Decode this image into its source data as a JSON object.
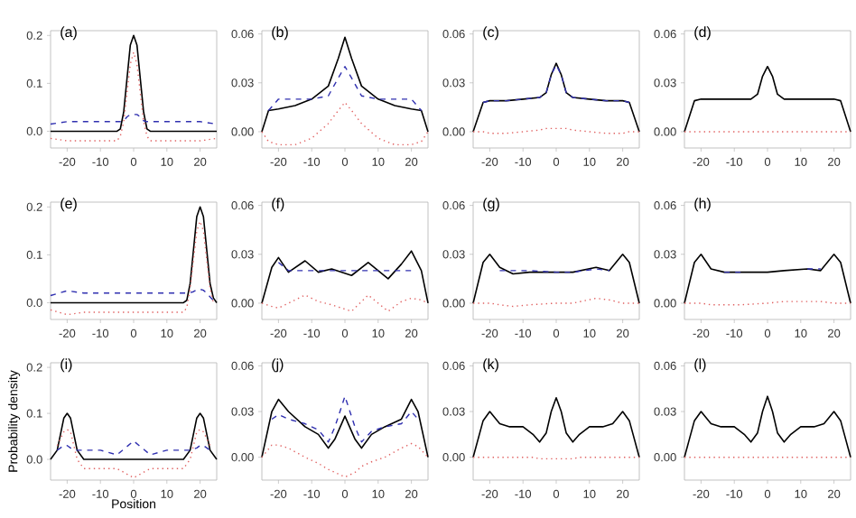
{
  "chart_data": [
    {
      "type": "line",
      "title": "(a)",
      "x": [
        -25,
        -20,
        -15,
        -10,
        -5,
        -4,
        -3,
        -2,
        -1,
        0,
        1,
        2,
        3,
        4,
        5,
        10,
        15,
        20,
        25
      ],
      "xlim": [
        -25,
        25
      ],
      "ylim": [
        -0.035,
        0.21
      ],
      "xticks": [
        -20,
        -10,
        0,
        10,
        20
      ],
      "yticks": [
        {
          "value": 0,
          "label": "0.0"
        },
        {
          "value": 0.1,
          "label": "0.1"
        },
        {
          "value": 0.2,
          "label": "0.2"
        }
      ],
      "series": [
        {
          "color": "#000000",
          "line_style": "solid",
          "values": [
            0,
            0,
            0,
            0,
            0,
            0.005,
            0.04,
            0.11,
            0.18,
            0.2,
            0.18,
            0.11,
            0.04,
            0.005,
            0,
            0,
            0,
            0,
            0
          ]
        },
        {
          "color": "#3030b0",
          "line_style": "dashed",
          "values": [
            0.015,
            0.02,
            0.02,
            0.02,
            0.02,
            0.02,
            0.022,
            0.03,
            0.035,
            0.035,
            0.035,
            0.03,
            0.022,
            0.02,
            0.02,
            0.02,
            0.02,
            0.02,
            0.015
          ]
        },
        {
          "color": "#e06060",
          "line_style": "dotted",
          "values": [
            -0.015,
            -0.02,
            -0.02,
            -0.02,
            -0.02,
            -0.01,
            0.02,
            0.08,
            0.14,
            0.165,
            0.14,
            0.08,
            0.02,
            -0.01,
            -0.02,
            -0.02,
            -0.02,
            -0.02,
            -0.015
          ]
        }
      ]
    },
    {
      "type": "line",
      "title": "(b)",
      "x": [
        -25,
        -23,
        -20,
        -15,
        -10,
        -5,
        -2,
        0,
        2,
        5,
        10,
        15,
        20,
        23,
        25
      ],
      "xlim": [
        -25,
        25
      ],
      "ylim": [
        -0.01,
        0.062
      ],
      "xticks": [
        -20,
        -10,
        0,
        10,
        20
      ],
      "yticks": [
        {
          "value": 0,
          "label": "0.00"
        },
        {
          "value": 0.03,
          "label": "0.03"
        },
        {
          "value": 0.06,
          "label": "0.06"
        }
      ],
      "series": [
        {
          "color": "#000000",
          "line_style": "solid",
          "values": [
            0,
            0.013,
            0.014,
            0.016,
            0.02,
            0.028,
            0.045,
            0.058,
            0.045,
            0.028,
            0.02,
            0.016,
            0.014,
            0.013,
            0
          ]
        },
        {
          "color": "#3030b0",
          "line_style": "dashed",
          "values": [
            null,
            0.013,
            0.02,
            0.02,
            0.02,
            0.022,
            0.033,
            0.04,
            0.033,
            0.022,
            0.02,
            0.02,
            0.02,
            0.013,
            null
          ]
        },
        {
          "color": "#e06060",
          "line_style": "dotted",
          "values": [
            0,
            -0.006,
            -0.008,
            -0.008,
            -0.004,
            0.005,
            0.013,
            0.018,
            0.013,
            0.005,
            -0.004,
            -0.008,
            -0.008,
            -0.006,
            0
          ]
        }
      ]
    },
    {
      "type": "line",
      "title": "(c)",
      "x": [
        -25,
        -22,
        -20,
        -15,
        -10,
        -5,
        -3,
        -1.5,
        0,
        1.5,
        3,
        5,
        10,
        15,
        20,
        22,
        25
      ],
      "xlim": [
        -25,
        25
      ],
      "ylim": [
        -0.01,
        0.062
      ],
      "xticks": [
        -20,
        -10,
        0,
        10,
        20
      ],
      "yticks": [
        {
          "value": 0,
          "label": "0.00"
        },
        {
          "value": 0.03,
          "label": "0.03"
        },
        {
          "value": 0.06,
          "label": "0.06"
        }
      ],
      "series": [
        {
          "color": "#000000",
          "line_style": "solid",
          "values": [
            0,
            0.018,
            0.019,
            0.019,
            0.02,
            0.021,
            0.024,
            0.035,
            0.042,
            0.035,
            0.024,
            0.021,
            0.02,
            0.019,
            0.019,
            0.018,
            0
          ]
        },
        {
          "color": "#3030b0",
          "line_style": "dashed",
          "values": [
            null,
            0.018,
            0.019,
            0.019,
            0.02,
            0.021,
            0.024,
            0.035,
            0.041,
            0.035,
            0.024,
            0.021,
            0.02,
            0.019,
            0.019,
            0.018,
            null
          ]
        },
        {
          "color": "#e06060",
          "line_style": "dotted",
          "values": [
            0,
            0,
            -0.001,
            -0.001,
            0,
            0.001,
            0.002,
            0.002,
            0.002,
            0.002,
            0.002,
            0.001,
            0,
            -0.001,
            -0.001,
            0,
            0
          ]
        }
      ]
    },
    {
      "type": "line",
      "title": "(d)",
      "x": [
        -25,
        -22,
        -20,
        -15,
        -10,
        -5,
        -3,
        -1.5,
        0,
        1.5,
        3,
        5,
        10,
        15,
        20,
        22,
        25
      ],
      "xlim": [
        -25,
        25
      ],
      "ylim": [
        -0.01,
        0.062
      ],
      "xticks": [
        -20,
        -10,
        0,
        10,
        20
      ],
      "yticks": [
        {
          "value": 0,
          "label": "0.00"
        },
        {
          "value": 0.03,
          "label": "0.03"
        },
        {
          "value": 0.06,
          "label": "0.06"
        }
      ],
      "series": [
        {
          "color": "#000000",
          "line_style": "solid",
          "values": [
            0,
            0.019,
            0.02,
            0.02,
            0.02,
            0.02,
            0.023,
            0.034,
            0.04,
            0.034,
            0.023,
            0.02,
            0.02,
            0.02,
            0.02,
            0.019,
            0
          ]
        },
        {
          "color": "#e06060",
          "line_style": "dotted",
          "values": [
            0,
            0,
            0,
            0,
            0,
            0,
            0,
            0,
            0,
            0,
            0,
            0,
            0,
            0,
            0,
            0,
            0
          ]
        }
      ]
    },
    {
      "type": "line",
      "title": "(e)",
      "x": [
        -25,
        -20,
        -15,
        -10,
        -5,
        0,
        5,
        10,
        15,
        16,
        17,
        18,
        19,
        20,
        21,
        22,
        23,
        24,
        25
      ],
      "xlim": [
        -25,
        25
      ],
      "ylim": [
        -0.035,
        0.21
      ],
      "xticks": [
        -20,
        -10,
        0,
        10,
        20
      ],
      "yticks": [
        {
          "value": 0,
          "label": "0.0"
        },
        {
          "value": 0.1,
          "label": "0.1"
        },
        {
          "value": 0.2,
          "label": "0.2"
        }
      ],
      "series": [
        {
          "color": "#000000",
          "line_style": "solid",
          "values": [
            0,
            0,
            0,
            0,
            0,
            0,
            0,
            0,
            0,
            0.005,
            0.04,
            0.11,
            0.18,
            0.2,
            0.18,
            0.11,
            0.04,
            0.01,
            0
          ]
        },
        {
          "color": "#3030b0",
          "line_style": "dashed",
          "values": [
            0.015,
            0.025,
            0.02,
            0.02,
            0.02,
            0.02,
            0.02,
            0.02,
            0.02,
            0.02,
            0.021,
            0.023,
            0.027,
            0.028,
            0.026,
            0.02,
            0.012,
            0.005,
            0
          ]
        },
        {
          "color": "#e06060",
          "line_style": "dotted",
          "values": [
            -0.015,
            -0.025,
            -0.02,
            -0.02,
            -0.02,
            -0.02,
            -0.02,
            -0.02,
            -0.02,
            -0.01,
            0.03,
            0.09,
            0.15,
            0.17,
            0.15,
            0.09,
            0.03,
            0,
            null
          ]
        }
      ]
    },
    {
      "type": "line",
      "title": "(f)",
      "x": [
        -25,
        -22,
        -20,
        -17,
        -12,
        -8,
        -4,
        2,
        7,
        13,
        17,
        20,
        23,
        25
      ],
      "xlim": [
        -25,
        25
      ],
      "ylim": [
        -0.01,
        0.062
      ],
      "xticks": [
        -20,
        -10,
        0,
        10,
        20
      ],
      "yticks": [
        {
          "value": 0,
          "label": "0.00"
        },
        {
          "value": 0.03,
          "label": "0.03"
        },
        {
          "value": 0.06,
          "label": "0.06"
        }
      ],
      "series": [
        {
          "color": "#000000",
          "line_style": "solid",
          "values": [
            0,
            0.022,
            0.028,
            0.019,
            0.026,
            0.019,
            0.021,
            0.017,
            0.025,
            0.015,
            0.024,
            0.032,
            0.02,
            0
          ]
        },
        {
          "color": "#3030b0",
          "line_style": "dashed",
          "values": [
            null,
            null,
            0.025,
            0.02,
            0.02,
            0.02,
            0.02,
            0.02,
            0.02,
            0.02,
            0.02,
            0.02,
            null,
            null
          ]
        },
        {
          "color": "#e06060",
          "line_style": "dotted",
          "values": [
            0,
            -0.002,
            -0.003,
            0,
            0.005,
            0.001,
            -0.001,
            -0.005,
            0.005,
            -0.005,
            0.001,
            0.003,
            0.002,
            0
          ]
        }
      ]
    },
    {
      "type": "line",
      "title": "(g)",
      "x": [
        -25,
        -22,
        -20,
        -17,
        -13,
        -8,
        0,
        5,
        12,
        16,
        20,
        22,
        25
      ],
      "xlim": [
        -25,
        25
      ],
      "ylim": [
        -0.01,
        0.062
      ],
      "xticks": [
        -20,
        -10,
        0,
        10,
        20
      ],
      "yticks": [
        {
          "value": 0,
          "label": "0.00"
        },
        {
          "value": 0.03,
          "label": "0.03"
        },
        {
          "value": 0.06,
          "label": "0.06"
        }
      ],
      "series": [
        {
          "color": "#000000",
          "line_style": "solid",
          "values": [
            0,
            0.025,
            0.03,
            0.022,
            0.018,
            0.019,
            0.019,
            0.019,
            0.022,
            0.02,
            0.03,
            0.025,
            0
          ]
        },
        {
          "color": "#3030b0",
          "line_style": "dashed",
          "values": [
            null,
            null,
            null,
            0.02,
            0.02,
            0.02,
            0.019,
            0.019,
            0.021,
            0.02,
            null,
            null,
            null
          ]
        },
        {
          "color": "#e06060",
          "line_style": "dotted",
          "values": [
            0,
            0,
            0,
            -0.001,
            -0.002,
            -0.001,
            0,
            0,
            0.003,
            0.002,
            0,
            0,
            0
          ]
        }
      ]
    },
    {
      "type": "line",
      "title": "(h)",
      "x": [
        -25,
        -22,
        -20,
        -17,
        -13,
        -8,
        0,
        5,
        12,
        16,
        20,
        22,
        25
      ],
      "xlim": [
        -25,
        25
      ],
      "ylim": [
        -0.01,
        0.062
      ],
      "xticks": [
        -20,
        -10,
        0,
        10,
        20
      ],
      "yticks": [
        {
          "value": 0,
          "label": "0.00"
        },
        {
          "value": 0.03,
          "label": "0.03"
        },
        {
          "value": 0.06,
          "label": "0.06"
        }
      ],
      "series": [
        {
          "color": "#000000",
          "line_style": "solid",
          "values": [
            0,
            0.025,
            0.03,
            0.021,
            0.019,
            0.019,
            0.019,
            0.02,
            0.021,
            0.02,
            0.03,
            0.025,
            0
          ]
        },
        {
          "color": "#3030b0",
          "line_style": "dashed",
          "values": [
            null,
            null,
            null,
            null,
            0.019,
            0.019,
            null,
            null,
            0.021,
            0.021,
            null,
            null,
            null
          ]
        },
        {
          "color": "#e06060",
          "line_style": "dotted",
          "values": [
            0,
            0,
            0,
            -0.001,
            -0.001,
            -0.001,
            0,
            0.001,
            0.001,
            0.001,
            0,
            0,
            0
          ]
        }
      ]
    },
    {
      "type": "line",
      "title": "(i)",
      "xlabel": "Position",
      "ylabel": "Probability density",
      "x": [
        -25,
        -23,
        -21,
        -20,
        -19,
        -17,
        -15,
        -10,
        -5,
        0,
        5,
        10,
        15,
        17,
        19,
        20,
        21,
        23,
        25
      ],
      "xlim": [
        -25,
        25
      ],
      "ylim": [
        -0.045,
        0.21
      ],
      "xticks": [
        -20,
        -10,
        0,
        10,
        20
      ],
      "yticks": [
        {
          "value": 0,
          "label": "0.0"
        },
        {
          "value": 0.1,
          "label": "0.1"
        },
        {
          "value": 0.2,
          "label": "0.2"
        }
      ],
      "series": [
        {
          "color": "#000000",
          "line_style": "solid",
          "values": [
            0,
            0.02,
            0.09,
            0.1,
            0.09,
            0.02,
            0,
            0,
            0,
            0,
            0,
            0,
            0,
            0.02,
            0.09,
            0.1,
            0.09,
            0.02,
            0
          ]
        },
        {
          "color": "#3030b0",
          "line_style": "dashed",
          "values": [
            null,
            0.02,
            0.03,
            0.03,
            0.025,
            0.02,
            0.02,
            0.02,
            0.01,
            0.04,
            0.01,
            0.02,
            0.02,
            0.02,
            0.025,
            0.03,
            0.03,
            0.02,
            null
          ]
        },
        {
          "color": "#e06060",
          "line_style": "dotted",
          "values": [
            null,
            0.03,
            0.06,
            0.065,
            0.06,
            0,
            -0.02,
            -0.02,
            -0.02,
            -0.04,
            -0.02,
            -0.02,
            -0.02,
            0,
            0.06,
            0.065,
            0.06,
            0.03,
            null
          ]
        }
      ]
    },
    {
      "type": "line",
      "title": "(j)",
      "x": [
        -25,
        -22,
        -20,
        -17,
        -12,
        -8,
        -5,
        -3,
        0,
        3,
        5,
        8,
        12,
        17,
        20,
        22,
        25
      ],
      "xlim": [
        -25,
        25
      ],
      "ylim": [
        -0.015,
        0.062
      ],
      "xticks": [
        -20,
        -10,
        0,
        10,
        20
      ],
      "yticks": [
        {
          "value": 0,
          "label": "0.00"
        },
        {
          "value": 0.03,
          "label": "0.03"
        },
        {
          "value": 0.06,
          "label": "0.06"
        }
      ],
      "series": [
        {
          "color": "#000000",
          "line_style": "solid",
          "values": [
            0,
            0.03,
            0.038,
            0.03,
            0.02,
            0.015,
            0.006,
            0.012,
            0.027,
            0.012,
            0.006,
            0.015,
            0.02,
            0.025,
            0.038,
            0.03,
            0
          ]
        },
        {
          "color": "#3030b0",
          "line_style": "dashed",
          "values": [
            null,
            0.025,
            0.028,
            0.025,
            0.022,
            0.018,
            0.01,
            0.02,
            0.04,
            0.02,
            0.01,
            0.017,
            0.02,
            0.022,
            0.03,
            0.025,
            null
          ]
        },
        {
          "color": "#e06060",
          "line_style": "dotted",
          "values": [
            0,
            0.008,
            0.008,
            0.006,
            0,
            -0.004,
            -0.008,
            -0.01,
            -0.013,
            -0.01,
            -0.006,
            -0.003,
            0,
            0.006,
            0.009,
            0.007,
            0
          ]
        }
      ]
    },
    {
      "type": "line",
      "title": "(k)",
      "x": [
        -25,
        -22,
        -20,
        -17,
        -14,
        -10,
        -7,
        -5,
        -3,
        -1.5,
        0,
        1.5,
        3,
        5,
        7,
        10,
        14,
        17,
        20,
        22,
        25
      ],
      "xlim": [
        -25,
        25
      ],
      "ylim": [
        -0.015,
        0.062
      ],
      "xticks": [
        -20,
        -10,
        0,
        10,
        20
      ],
      "yticks": [
        {
          "value": 0,
          "label": "0.00"
        },
        {
          "value": 0.03,
          "label": "0.03"
        },
        {
          "value": 0.06,
          "label": "0.06"
        }
      ],
      "series": [
        {
          "color": "#000000",
          "line_style": "solid",
          "values": [
            0,
            0.024,
            0.03,
            0.022,
            0.02,
            0.02,
            0.015,
            0.01,
            0.016,
            0.03,
            0.039,
            0.03,
            0.016,
            0.01,
            0.015,
            0.02,
            0.02,
            0.022,
            0.03,
            0.024,
            0
          ]
        },
        {
          "color": "#e06060",
          "line_style": "dotted",
          "values": [
            0,
            0,
            0,
            0,
            0,
            0,
            0,
            -0.001,
            -0.001,
            -0.001,
            -0.001,
            -0.001,
            -0.001,
            -0.001,
            0,
            0,
            0,
            0,
            0,
            0,
            0
          ]
        }
      ]
    },
    {
      "type": "line",
      "title": "(l)",
      "x": [
        -25,
        -22,
        -20,
        -17,
        -14,
        -10,
        -7,
        -5,
        -3,
        -1.5,
        0,
        1.5,
        3,
        5,
        7,
        10,
        14,
        17,
        20,
        22,
        25
      ],
      "xlim": [
        -25,
        25
      ],
      "ylim": [
        -0.015,
        0.062
      ],
      "xticks": [
        -20,
        -10,
        0,
        10,
        20
      ],
      "yticks": [
        {
          "value": 0,
          "label": "0.00"
        },
        {
          "value": 0.03,
          "label": "0.03"
        },
        {
          "value": 0.06,
          "label": "0.06"
        }
      ],
      "series": [
        {
          "color": "#000000",
          "line_style": "solid",
          "values": [
            0,
            0.024,
            0.03,
            0.022,
            0.02,
            0.02,
            0.015,
            0.01,
            0.016,
            0.03,
            0.04,
            0.03,
            0.016,
            0.01,
            0.015,
            0.02,
            0.02,
            0.022,
            0.03,
            0.024,
            0
          ]
        },
        {
          "color": "#e06060",
          "line_style": "dotted",
          "values": [
            0,
            0,
            0,
            0,
            0,
            0,
            0,
            0,
            0,
            0,
            0,
            0,
            0,
            0,
            0,
            0,
            0,
            0,
            0,
            0,
            0
          ]
        }
      ]
    }
  ]
}
